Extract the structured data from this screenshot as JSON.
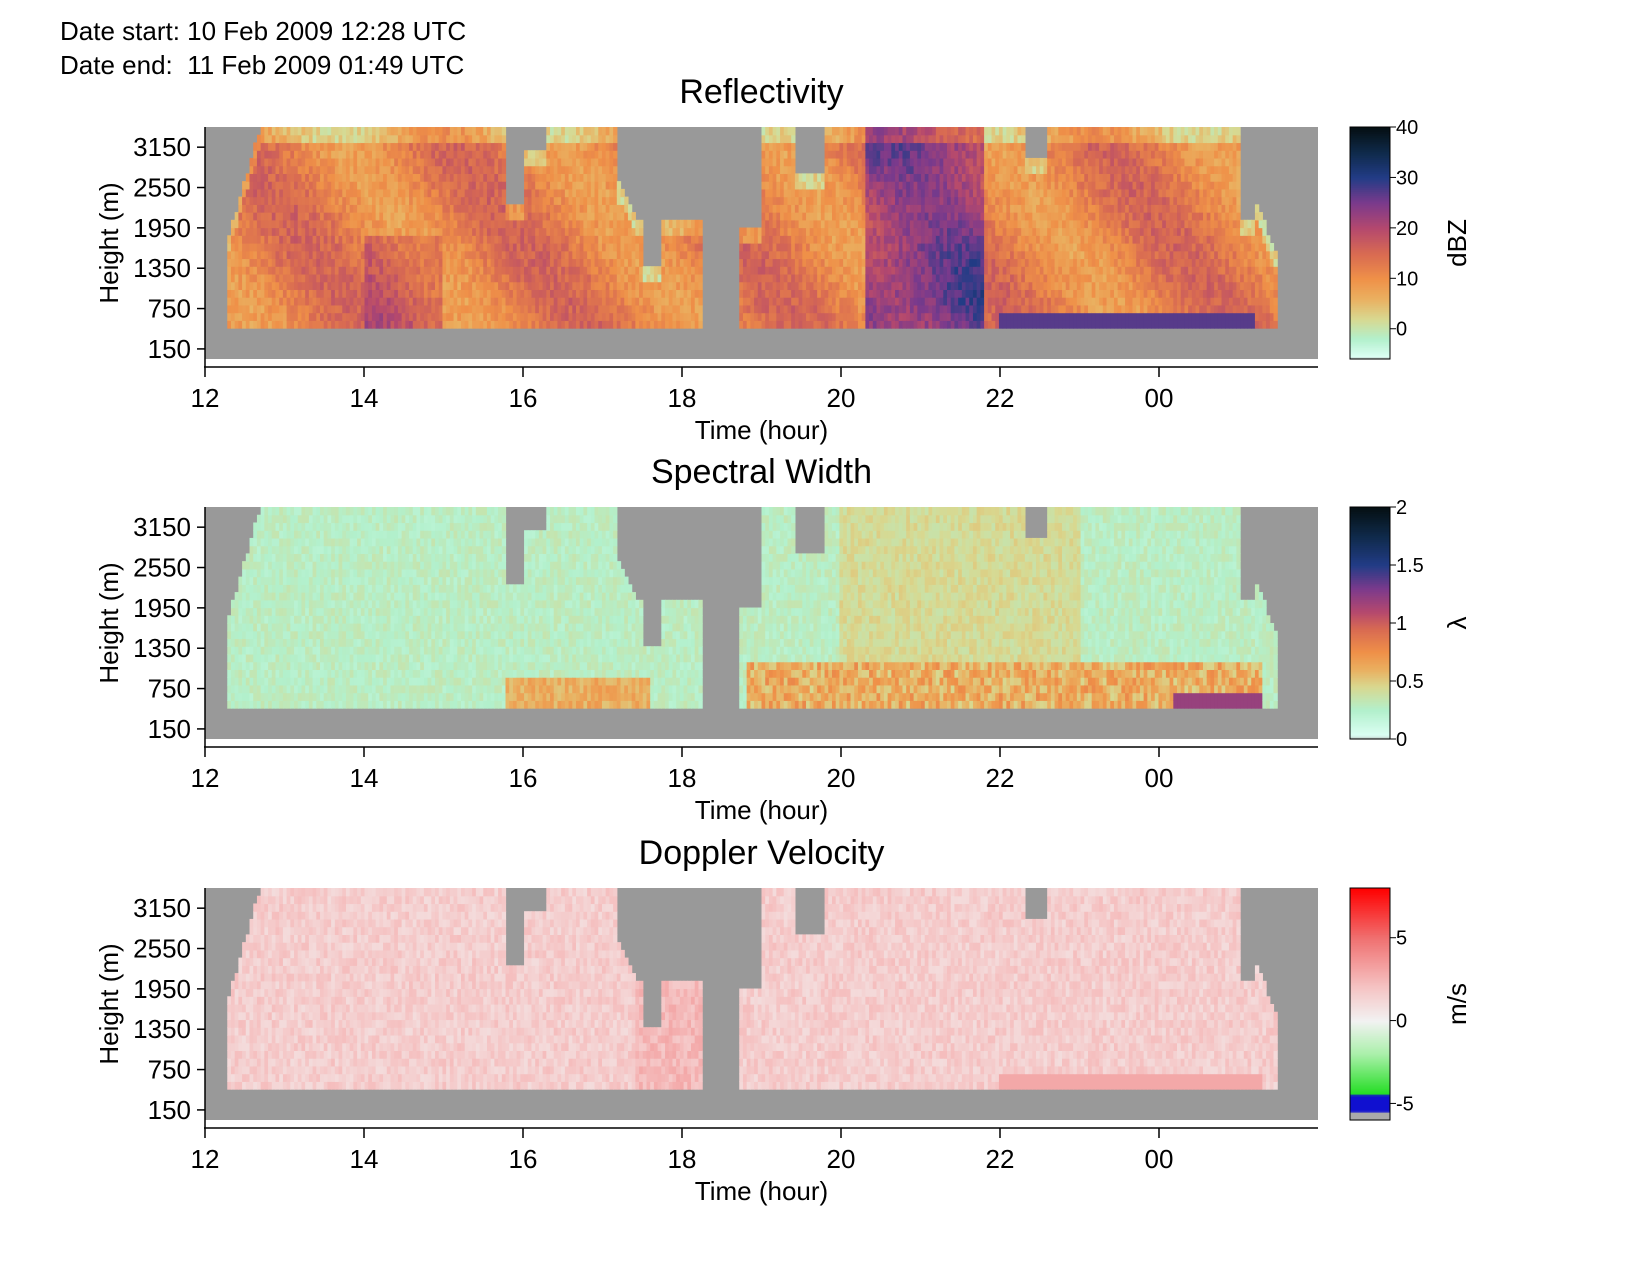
{
  "header": {
    "date_start": "Date start: 10 Feb 2009 12:28 UTC",
    "date_end": "Date end:  11 Feb 2009 01:49 UTC"
  },
  "colors": {
    "no_data": "#999999",
    "axis": "#000000"
  },
  "chart_data": [
    {
      "type": "heatmap",
      "title": "Reflectivity",
      "xlabel": "Time (hour)",
      "ylabel": "Height (m)",
      "x_ticks": [
        "12",
        "14",
        "16",
        "18",
        "20",
        "22",
        "00"
      ],
      "y_ticks": [
        "3150",
        "2550",
        "1950",
        "1350",
        "750",
        "150"
      ],
      "xlim_hours": [
        12,
        26
      ],
      "ylim_m": [
        0,
        3450
      ],
      "colorbar": {
        "label": "dBZ",
        "ticks": [
          "40",
          "30",
          "20",
          "10",
          "0"
        ],
        "tick_values": [
          40,
          30,
          20,
          10,
          0
        ],
        "range": [
          -6,
          40
        ],
        "stops": [
          {
            "v": -6,
            "c": "#aaaaaa"
          },
          {
            "v": -5.5,
            "c": "#dcfff4"
          },
          {
            "v": -2,
            "c": "#b2f0cc"
          },
          {
            "v": 2,
            "c": "#d8d890"
          },
          {
            "v": 6,
            "c": "#eab060"
          },
          {
            "v": 10,
            "c": "#ef9048"
          },
          {
            "v": 15,
            "c": "#d86a52"
          },
          {
            "v": 20,
            "c": "#b4486e"
          },
          {
            "v": 25,
            "c": "#7a3a8c"
          },
          {
            "v": 30,
            "c": "#223c86"
          },
          {
            "v": 35,
            "c": "#0f2a4a"
          },
          {
            "v": 40,
            "c": "#050f12"
          }
        ]
      },
      "data_extent_hours": [
        12.3,
        25.5
      ],
      "lowest_data_height_m": 450,
      "note_levels": {
        "typical": 13,
        "strong_band_hours": [
          20.3,
          21.8
        ],
        "strong_value": 25
      }
    },
    {
      "type": "heatmap",
      "title": "Spectral Width",
      "xlabel": "Time (hour)",
      "ylabel": "Height (m)",
      "x_ticks": [
        "12",
        "14",
        "16",
        "18",
        "20",
        "22",
        "00"
      ],
      "y_ticks": [
        "3150",
        "2550",
        "1950",
        "1350",
        "750",
        "150"
      ],
      "xlim_hours": [
        12,
        26
      ],
      "ylim_m": [
        0,
        3450
      ],
      "colorbar": {
        "label": "λ",
        "ticks": [
          "2",
          "1.5",
          "1",
          "0.5",
          "0"
        ],
        "tick_values": [
          2,
          1.5,
          1,
          0.5,
          0
        ],
        "range": [
          0,
          2
        ],
        "stops": [
          {
            "v": 0,
            "c": "#aaaaaa"
          },
          {
            "v": 0.03,
            "c": "#dcfff4"
          },
          {
            "v": 0.25,
            "c": "#b2f0cc"
          },
          {
            "v": 0.45,
            "c": "#d8d890"
          },
          {
            "v": 0.6,
            "c": "#eab060"
          },
          {
            "v": 0.75,
            "c": "#ef9048"
          },
          {
            "v": 0.95,
            "c": "#d86a52"
          },
          {
            "v": 1.1,
            "c": "#b4486e"
          },
          {
            "v": 1.3,
            "c": "#7a3a8c"
          },
          {
            "v": 1.5,
            "c": "#223c86"
          },
          {
            "v": 1.75,
            "c": "#0f2a4a"
          },
          {
            "v": 2,
            "c": "#050f12"
          }
        ]
      },
      "data_extent_hours": [
        12.3,
        25.5
      ],
      "lowest_data_height_m": 450,
      "note_levels": {
        "typical": 0.3,
        "low_layer_value": 0.7
      }
    },
    {
      "type": "heatmap",
      "title": "Doppler Velocity",
      "xlabel": "Time (hour)",
      "ylabel": "Height (m)",
      "x_ticks": [
        "12",
        "14",
        "16",
        "18",
        "20",
        "22",
        "00"
      ],
      "y_ticks": [
        "3150",
        "2550",
        "1950",
        "1350",
        "750",
        "150"
      ],
      "xlim_hours": [
        12,
        26
      ],
      "ylim_m": [
        0,
        3450
      ],
      "colorbar": {
        "label": "m/s",
        "ticks": [
          "5",
          "0",
          "-5"
        ],
        "tick_values": [
          5,
          0,
          -5
        ],
        "range": [
          -6,
          8
        ],
        "stops": [
          {
            "v": -6,
            "c": "#aaaaaa"
          },
          {
            "v": -5.5,
            "c": "#aaaaaa"
          },
          {
            "v": -5.45,
            "c": "#1010d0"
          },
          {
            "v": -4.5,
            "c": "#1010d0"
          },
          {
            "v": -4.45,
            "c": "#22dd22"
          },
          {
            "v": -2,
            "c": "#aaf0aa"
          },
          {
            "v": 0,
            "c": "#f2f2f2"
          },
          {
            "v": 2,
            "c": "#f5c4c4"
          },
          {
            "v": 5,
            "c": "#f07070"
          },
          {
            "v": 8,
            "c": "#ff0000"
          }
        ]
      },
      "data_extent_hours": [
        12.3,
        25.5
      ],
      "lowest_data_height_m": 450,
      "note_levels": {
        "typical": 1.5
      }
    }
  ]
}
